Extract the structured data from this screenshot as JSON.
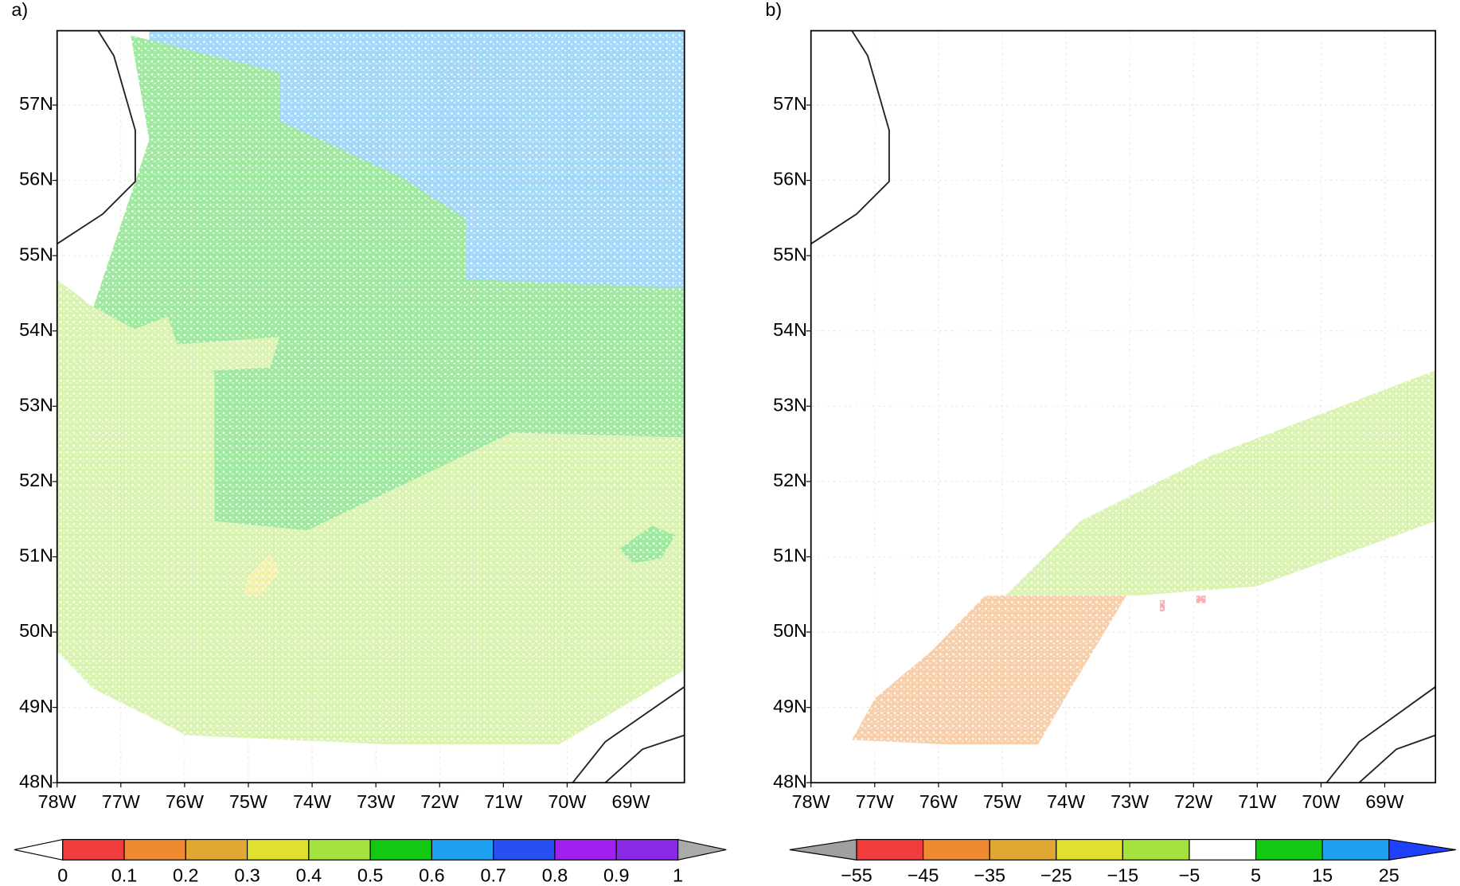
{
  "panels": [
    {
      "label": "a)",
      "x_ticks": [
        "78W",
        "77W",
        "76W",
        "75W",
        "74W",
        "73W",
        "72W",
        "71W",
        "70W",
        "69W"
      ],
      "y_ticks": [
        "48N",
        "49N",
        "50N",
        "51N",
        "52N",
        "53N",
        "54N",
        "55N",
        "56N",
        "57N"
      ],
      "colorbar": {
        "labels": [
          "0",
          "0.1",
          "0.2",
          "0.3",
          "0.4",
          "0.5",
          "0.6",
          "0.7",
          "0.8",
          "0.9",
          "1"
        ],
        "colors": [
          "#f03c3c",
          "#f08a30",
          "#e0a832",
          "#e0e030",
          "#a6e23e",
          "#14c814",
          "#1ea0f0",
          "#2850f0",
          "#a020f0",
          "#8c28e8"
        ],
        "low_color": "#ffffff",
        "high_color": "#aaaaaa"
      }
    },
    {
      "label": "b)",
      "x_ticks": [
        "78W",
        "77W",
        "76W",
        "75W",
        "74W",
        "73W",
        "72W",
        "71W",
        "70W",
        "69W"
      ],
      "y_ticks": [
        "48N",
        "49N",
        "50N",
        "51N",
        "52N",
        "53N",
        "54N",
        "55N",
        "56N",
        "57N"
      ],
      "colorbar": {
        "labels": [
          "−55",
          "−45",
          "−35",
          "−25",
          "−15",
          "−5",
          "5",
          "15",
          "25"
        ],
        "colors": [
          "#f03c3c",
          "#f08a30",
          "#e0a832",
          "#e0e030",
          "#a6e23e",
          "#ffffff",
          "#14c814",
          "#1ea0f0"
        ],
        "low_color": "#a0a0a0",
        "high_color": "#2040ff"
      }
    }
  ]
}
